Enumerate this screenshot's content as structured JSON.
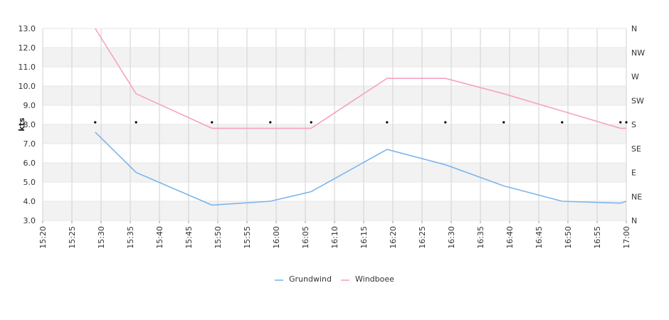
{
  "chart_data": {
    "type": "line",
    "ylabel": "kts",
    "ylim": [
      3.0,
      13.0
    ],
    "y_ticks": [
      "3.0",
      "4.0",
      "5.0",
      "6.0",
      "7.0",
      "8.0",
      "9.0",
      "10.0",
      "11.0",
      "12.0",
      "13.0"
    ],
    "x_ticks": [
      "15:20",
      "15:25",
      "15:30",
      "15:35",
      "15:40",
      "15:45",
      "15:50",
      "15:55",
      "16:00",
      "16:05",
      "16:10",
      "16:15",
      "16:20",
      "16:25",
      "16:30",
      "16:35",
      "16:40",
      "16:45",
      "16:50",
      "16:55",
      "17:00"
    ],
    "xlim": [
      "15:20",
      "17:00"
    ],
    "y2_ticks": [
      "N",
      "NE",
      "E",
      "SE",
      "S",
      "SW",
      "W",
      "NW",
      "N"
    ],
    "grid": true,
    "legend_position": "bottom",
    "series": [
      {
        "name": "Grundwind",
        "color": "#7cb5ec",
        "x": [
          "15:29",
          "15:36",
          "15:49",
          "15:59",
          "16:06",
          "16:19",
          "16:29",
          "16:39",
          "16:49",
          "16:59",
          "17:00"
        ],
        "values": [
          7.6,
          5.5,
          3.8,
          4.0,
          4.5,
          6.7,
          5.9,
          4.8,
          4.0,
          3.9,
          4.0
        ]
      },
      {
        "name": "Windboee",
        "color": "#f7a1c4",
        "x": [
          "15:29",
          "15:36",
          "15:49",
          "15:59",
          "16:06",
          "16:19",
          "16:29",
          "16:39",
          "16:49",
          "16:59",
          "17:00"
        ],
        "values": [
          13.0,
          9.6,
          7.8,
          7.8,
          7.8,
          10.4,
          10.4,
          9.6,
          8.7,
          7.8,
          7.8
        ]
      }
    ],
    "direction_markers": {
      "x": [
        "15:29",
        "15:36",
        "15:49",
        "15:59",
        "16:06",
        "16:19",
        "16:29",
        "16:39",
        "16:49",
        "16:59",
        "17:00"
      ],
      "direction": [
        "S",
        "S",
        "S",
        "S",
        "S",
        "S",
        "S",
        "S",
        "S",
        "S",
        "S"
      ]
    }
  }
}
